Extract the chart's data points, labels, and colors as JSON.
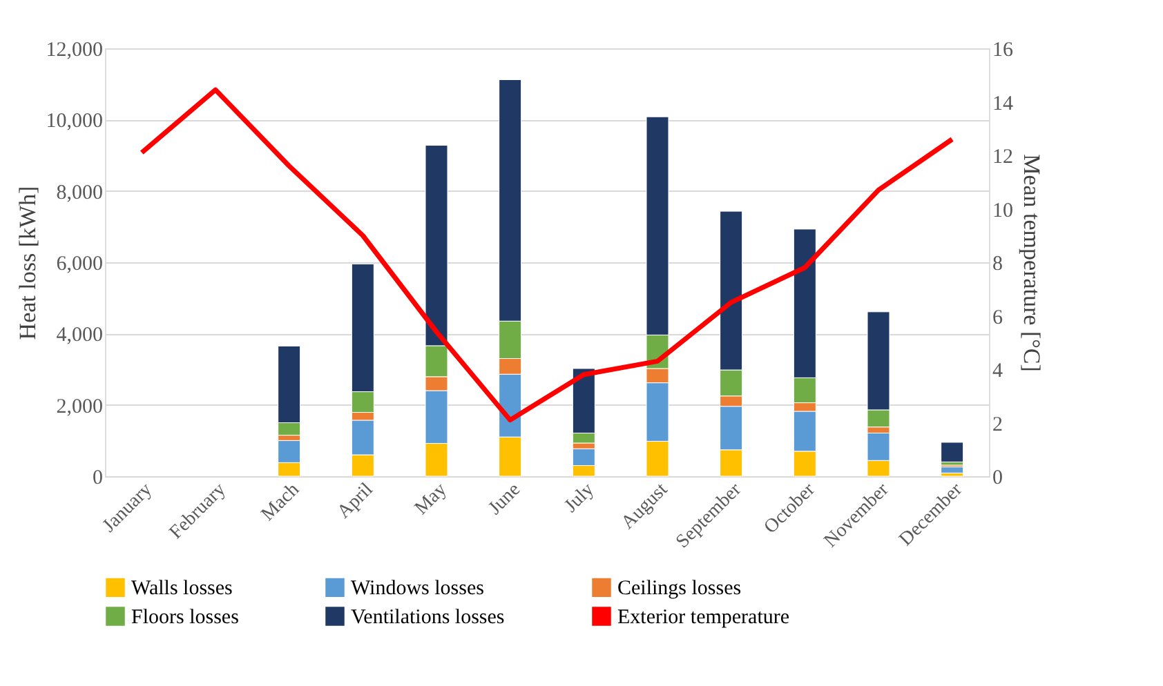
{
  "chart_data": {
    "type": "bar",
    "stacked": true,
    "ylabel": "Heat loss [kWh]",
    "y2label": "Mean temperature [°C]",
    "categories": [
      "January",
      "February",
      "Mach",
      "April",
      "May",
      "June",
      "July",
      "August",
      "September",
      "October",
      "November",
      "December"
    ],
    "series": [
      {
        "name": "Walls losses",
        "color": "#ffc000",
        "values": [
          null,
          null,
          380,
          600,
          920,
          1100,
          300,
          980,
          740,
          700,
          440,
          90
        ]
      },
      {
        "name": "Windows losses",
        "color": "#5b9bd5",
        "values": [
          null,
          null,
          620,
          970,
          1480,
          1760,
          470,
          1640,
          1220,
          1120,
          770,
          170
        ]
      },
      {
        "name": "Ceilings losses",
        "color": "#ed7d31",
        "values": [
          null,
          null,
          150,
          220,
          390,
          440,
          160,
          400,
          290,
          240,
          170,
          50
        ]
      },
      {
        "name": "Floors losses",
        "color": "#70ad47",
        "values": [
          null,
          null,
          350,
          580,
          870,
          1050,
          280,
          940,
          730,
          700,
          480,
          90
        ]
      },
      {
        "name": "Ventilations losses",
        "color": "#203864",
        "values": [
          null,
          null,
          2150,
          3580,
          5620,
          6770,
          1810,
          6120,
          4450,
          4170,
          2750,
          550
        ]
      },
      {
        "name": "Exterior temperature",
        "color": "#ff0000",
        "type": "line",
        "axis": "y2",
        "values": [
          12.1,
          14.45,
          11.6,
          9.0,
          5.4,
          2.1,
          3.8,
          4.3,
          6.5,
          7.8,
          10.7,
          12.6
        ]
      }
    ],
    "ylim": [
      0,
      12000
    ],
    "yticks": [
      {
        "value": 0,
        "label": "0"
      },
      {
        "value": 2000,
        "label": "2,000"
      },
      {
        "value": 4000,
        "label": "4,000"
      },
      {
        "value": 6000,
        "label": "6,000"
      },
      {
        "value": 8000,
        "label": "8,000"
      },
      {
        "value": 10000,
        "label": "10,000"
      },
      {
        "value": 12000,
        "label": "12,000"
      }
    ],
    "y2lim": [
      0,
      16
    ],
    "y2ticks": [
      0,
      2,
      4,
      6,
      8,
      10,
      12,
      14,
      16
    ],
    "grid": "y",
    "legend": "bottom",
    "line_style": "solid",
    "marker": "none"
  }
}
